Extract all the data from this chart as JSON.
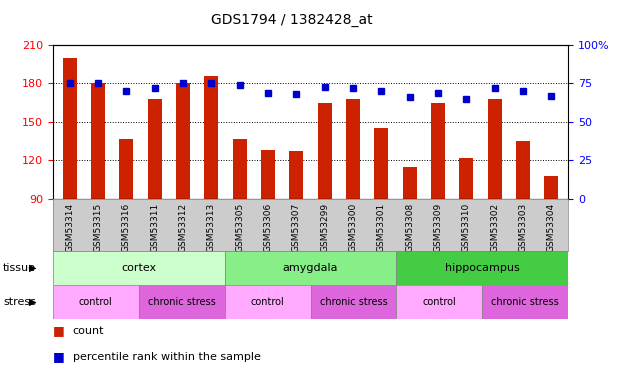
{
  "title": "GDS1794 / 1382428_at",
  "samples": [
    "GSM53314",
    "GSM53315",
    "GSM53316",
    "GSM53311",
    "GSM53312",
    "GSM53313",
    "GSM53305",
    "GSM53306",
    "GSM53307",
    "GSM53299",
    "GSM53300",
    "GSM53301",
    "GSM53308",
    "GSM53309",
    "GSM53310",
    "GSM53302",
    "GSM53303",
    "GSM53304"
  ],
  "counts": [
    200,
    180,
    137,
    168,
    180,
    186,
    137,
    128,
    127,
    165,
    168,
    145,
    115,
    165,
    122,
    168,
    135,
    108
  ],
  "percentiles": [
    75,
    75,
    70,
    72,
    75,
    75,
    74,
    69,
    68,
    73,
    72,
    70,
    66,
    69,
    65,
    72,
    70,
    67
  ],
  "ymin": 90,
  "ymax": 210,
  "yticks": [
    90,
    120,
    150,
    180,
    210
  ],
  "yright_min": 0,
  "yright_max": 100,
  "yright_ticks": [
    0,
    25,
    50,
    75,
    100
  ],
  "tissue_groups": [
    {
      "label": "cortex",
      "start": 0,
      "end": 6,
      "color": "#ccffcc"
    },
    {
      "label": "amygdala",
      "start": 6,
      "end": 12,
      "color": "#88ee88"
    },
    {
      "label": "hippocampus",
      "start": 12,
      "end": 18,
      "color": "#44cc44"
    }
  ],
  "stress_groups": [
    {
      "label": "control",
      "start": 0,
      "end": 3,
      "color": "#ffaaff"
    },
    {
      "label": "chronic stress",
      "start": 3,
      "end": 6,
      "color": "#dd66dd"
    },
    {
      "label": "control",
      "start": 6,
      "end": 9,
      "color": "#ffaaff"
    },
    {
      "label": "chronic stress",
      "start": 9,
      "end": 12,
      "color": "#dd66dd"
    },
    {
      "label": "control",
      "start": 12,
      "end": 15,
      "color": "#ffaaff"
    },
    {
      "label": "chronic stress",
      "start": 15,
      "end": 18,
      "color": "#dd66dd"
    }
  ],
  "bar_color": "#cc2200",
  "dot_color": "#0000cc",
  "bar_width": 0.5,
  "xlabel_fontsize": 6.5,
  "title_fontsize": 10,
  "tick_bg_color": "#cccccc"
}
